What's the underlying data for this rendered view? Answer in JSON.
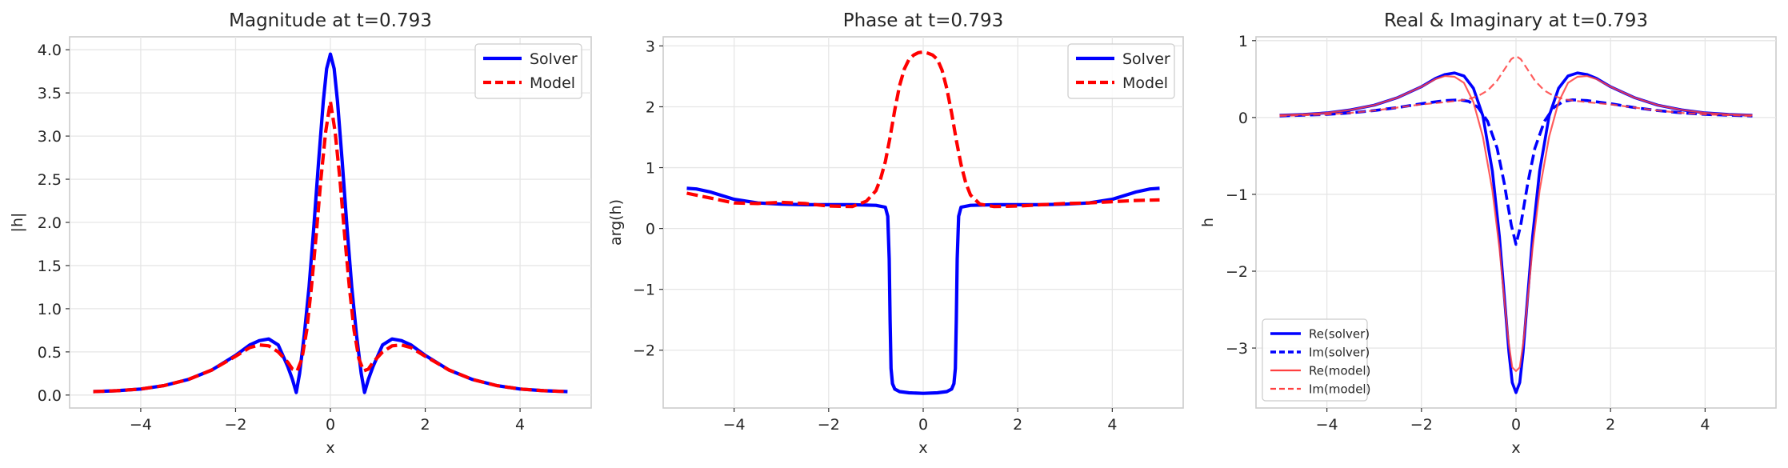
{
  "chart_data": [
    {
      "type": "line",
      "title": "Magnitude at t=0.793",
      "xlabel": "x",
      "ylabel": "|h|",
      "xlim": [
        -5.5,
        5.5
      ],
      "ylim": [
        -0.15,
        4.15
      ],
      "xticks": [
        -4,
        -2,
        0,
        2,
        4
      ],
      "xtick_labels": [
        "−4",
        "−2",
        "0",
        "2",
        "4"
      ],
      "yticks": [
        0,
        0.5,
        1,
        1.5,
        2,
        2.5,
        3,
        3.5,
        4
      ],
      "ytick_labels": [
        "0.0",
        "0.5",
        "1.0",
        "1.5",
        "2.0",
        "2.5",
        "3.0",
        "3.5",
        "4.0"
      ],
      "grid": true,
      "legend_position": "upper-right",
      "series": [
        {
          "name": "Solver",
          "color": "#0000ff",
          "dash": "solid",
          "x": [
            -5,
            -4.5,
            -4,
            -3.5,
            -3,
            -2.5,
            -2,
            -1.7,
            -1.5,
            -1.3,
            -1.1,
            -0.9,
            -0.8,
            -0.72,
            -0.65,
            -0.55,
            -0.45,
            -0.35,
            -0.25,
            -0.15,
            -0.08,
            0,
            0.08,
            0.15,
            0.25,
            0.35,
            0.45,
            0.55,
            0.65,
            0.72,
            0.8,
            0.9,
            1.1,
            1.3,
            1.5,
            1.7,
            2,
            2.5,
            3,
            3.5,
            4,
            4.5,
            5
          ],
          "y": [
            0.04,
            0.05,
            0.07,
            0.11,
            0.18,
            0.29,
            0.46,
            0.58,
            0.63,
            0.65,
            0.58,
            0.33,
            0.18,
            0.03,
            0.25,
            0.7,
            1.25,
            1.95,
            2.7,
            3.4,
            3.78,
            3.95,
            3.78,
            3.4,
            2.7,
            1.95,
            1.25,
            0.7,
            0.25,
            0.03,
            0.18,
            0.33,
            0.58,
            0.65,
            0.63,
            0.58,
            0.46,
            0.29,
            0.18,
            0.11,
            0.07,
            0.05,
            0.04
          ]
        },
        {
          "name": "Model",
          "color": "#ff0000",
          "dash": "dashed",
          "x": [
            -5,
            -4.5,
            -4,
            -3.5,
            -3,
            -2.5,
            -2,
            -1.7,
            -1.5,
            -1.3,
            -1.1,
            -0.9,
            -0.8,
            -0.7,
            -0.6,
            -0.5,
            -0.4,
            -0.3,
            -0.2,
            -0.1,
            0,
            0.1,
            0.2,
            0.3,
            0.4,
            0.5,
            0.6,
            0.7,
            0.8,
            0.9,
            1.1,
            1.3,
            1.5,
            1.7,
            2,
            2.5,
            3,
            3.5,
            4,
            4.5,
            5
          ],
          "y": [
            0.04,
            0.05,
            0.07,
            0.11,
            0.18,
            0.29,
            0.45,
            0.55,
            0.58,
            0.57,
            0.5,
            0.38,
            0.3,
            0.28,
            0.42,
            0.75,
            1.25,
            1.85,
            2.5,
            3.05,
            3.4,
            3.05,
            2.5,
            1.85,
            1.25,
            0.75,
            0.42,
            0.28,
            0.3,
            0.38,
            0.5,
            0.57,
            0.58,
            0.55,
            0.45,
            0.29,
            0.18,
            0.11,
            0.07,
            0.05,
            0.04
          ]
        }
      ]
    },
    {
      "type": "line",
      "title": "Phase at t=0.793",
      "xlabel": "x",
      "ylabel": "arg(h)",
      "xlim": [
        -5.5,
        5.5
      ],
      "ylim": [
        -2.95,
        3.15
      ],
      "xticks": [
        -4,
        -2,
        0,
        2,
        4
      ],
      "xtick_labels": [
        "−4",
        "−2",
        "0",
        "2",
        "4"
      ],
      "yticks": [
        -2,
        -1,
        0,
        1,
        2,
        3
      ],
      "ytick_labels": [
        "−2",
        "−1",
        "0",
        "1",
        "2",
        "3"
      ],
      "grid": true,
      "legend_position": "upper-right",
      "series": [
        {
          "name": "Solver",
          "color": "#0000ff",
          "dash": "solid",
          "x": [
            -5,
            -4.8,
            -4.5,
            -4,
            -3.5,
            -3,
            -2.5,
            -2,
            -1.5,
            -1,
            -0.8,
            -0.75,
            -0.72,
            -0.7,
            -0.68,
            -0.65,
            -0.6,
            -0.5,
            -0.3,
            0,
            0.3,
            0.5,
            0.6,
            0.65,
            0.68,
            0.7,
            0.72,
            0.75,
            0.8,
            1,
            1.5,
            2,
            2.5,
            3,
            3.5,
            4,
            4.5,
            4.8,
            5
          ],
          "y": [
            0.66,
            0.65,
            0.6,
            0.48,
            0.42,
            0.4,
            0.39,
            0.39,
            0.39,
            0.38,
            0.35,
            0.2,
            -0.5,
            -1.5,
            -2.3,
            -2.55,
            -2.64,
            -2.68,
            -2.7,
            -2.71,
            -2.7,
            -2.68,
            -2.64,
            -2.55,
            -2.3,
            -1.5,
            -0.5,
            0.2,
            0.35,
            0.38,
            0.39,
            0.39,
            0.39,
            0.4,
            0.42,
            0.48,
            0.6,
            0.65,
            0.66
          ]
        },
        {
          "name": "Model",
          "color": "#ff0000",
          "dash": "dashed",
          "x": [
            -5,
            -4.5,
            -4,
            -3.5,
            -3,
            -2.5,
            -2,
            -1.5,
            -1.2,
            -1,
            -0.9,
            -0.8,
            -0.7,
            -0.6,
            -0.5,
            -0.4,
            -0.3,
            -0.2,
            -0.1,
            0,
            0.1,
            0.2,
            0.3,
            0.4,
            0.5,
            0.6,
            0.7,
            0.8,
            0.9,
            1,
            1.2,
            1.5,
            2,
            2.5,
            3,
            3.5,
            4,
            4.5,
            5
          ],
          "y": [
            0.58,
            0.5,
            0.42,
            0.41,
            0.43,
            0.41,
            0.37,
            0.36,
            0.45,
            0.62,
            0.82,
            1.1,
            1.5,
            1.95,
            2.35,
            2.62,
            2.78,
            2.85,
            2.89,
            2.9,
            2.88,
            2.85,
            2.78,
            2.6,
            2.3,
            1.9,
            1.45,
            1.05,
            0.75,
            0.55,
            0.4,
            0.36,
            0.37,
            0.39,
            0.41,
            0.42,
            0.44,
            0.46,
            0.47
          ]
        }
      ]
    },
    {
      "type": "line",
      "title": "Real & Imaginary at t=0.793",
      "xlabel": "x",
      "ylabel": "h",
      "xlim": [
        -5.5,
        5.5
      ],
      "ylim": [
        -3.78,
        1.05
      ],
      "xticks": [
        -4,
        -2,
        0,
        2,
        4
      ],
      "xtick_labels": [
        "−4",
        "−2",
        "0",
        "2",
        "4"
      ],
      "yticks": [
        -3,
        -2,
        -1,
        0,
        1
      ],
      "ytick_labels": [
        "−3",
        "−2",
        "−1",
        "0",
        "1"
      ],
      "grid": true,
      "legend_position": "lower-left",
      "series": [
        {
          "name": "Re(solver)",
          "color": "#0000ff",
          "dash": "solid",
          "x": [
            -5,
            -4.5,
            -4,
            -3.5,
            -3,
            -2.5,
            -2,
            -1.7,
            -1.5,
            -1.3,
            -1.1,
            -0.9,
            -0.7,
            -0.5,
            -0.35,
            -0.25,
            -0.15,
            -0.08,
            0,
            0.08,
            0.15,
            0.25,
            0.35,
            0.5,
            0.7,
            0.9,
            1.1,
            1.3,
            1.5,
            1.7,
            2,
            2.5,
            3,
            3.5,
            4,
            4.5,
            5
          ],
          "y": [
            0.03,
            0.04,
            0.06,
            0.1,
            0.16,
            0.26,
            0.4,
            0.51,
            0.56,
            0.58,
            0.54,
            0.38,
            0.02,
            -0.7,
            -1.55,
            -2.3,
            -3.05,
            -3.45,
            -3.58,
            -3.45,
            -3.05,
            -2.3,
            -1.55,
            -0.7,
            0.02,
            0.38,
            0.54,
            0.58,
            0.56,
            0.51,
            0.4,
            0.26,
            0.16,
            0.1,
            0.06,
            0.04,
            0.03
          ]
        },
        {
          "name": "Im(solver)",
          "color": "#0000ff",
          "dash": "dashed",
          "x": [
            -5,
            -4.5,
            -4,
            -3.5,
            -3,
            -2.5,
            -2,
            -1.5,
            -1.2,
            -1,
            -0.8,
            -0.6,
            -0.4,
            -0.25,
            -0.1,
            0,
            0.1,
            0.25,
            0.4,
            0.6,
            0.8,
            1,
            1.2,
            1.5,
            2,
            2.5,
            3,
            3.5,
            4,
            4.5,
            5
          ],
          "y": [
            0.02,
            0.03,
            0.04,
            0.06,
            0.09,
            0.13,
            0.18,
            0.22,
            0.23,
            0.21,
            0.13,
            -0.05,
            -0.4,
            -0.85,
            -1.4,
            -1.65,
            -1.4,
            -0.85,
            -0.4,
            -0.05,
            0.13,
            0.21,
            0.23,
            0.22,
            0.18,
            0.13,
            0.09,
            0.06,
            0.04,
            0.03,
            0.02
          ]
        },
        {
          "name": "Re(model)",
          "color": "#ff4040",
          "dash": "solid",
          "x": [
            -5,
            -4.5,
            -4,
            -3.5,
            -3,
            -2.5,
            -2,
            -1.7,
            -1.5,
            -1.3,
            -1.1,
            -0.9,
            -0.7,
            -0.5,
            -0.35,
            -0.25,
            -0.15,
            -0.08,
            0,
            0.08,
            0.15,
            0.25,
            0.35,
            0.5,
            0.7,
            0.9,
            1.1,
            1.3,
            1.5,
            1.7,
            2,
            2.5,
            3,
            3.5,
            4,
            4.5,
            5
          ],
          "y": [
            0.03,
            0.04,
            0.06,
            0.1,
            0.16,
            0.26,
            0.4,
            0.5,
            0.54,
            0.53,
            0.45,
            0.2,
            -0.25,
            -0.95,
            -1.7,
            -2.35,
            -2.95,
            -3.25,
            -3.3,
            -3.25,
            -2.95,
            -2.35,
            -1.7,
            -0.95,
            -0.25,
            0.2,
            0.45,
            0.53,
            0.54,
            0.5,
            0.4,
            0.26,
            0.16,
            0.1,
            0.06,
            0.04,
            0.03
          ]
        },
        {
          "name": "Im(model)",
          "color": "#ff4040",
          "dash": "dashed",
          "x": [
            -5,
            -4.5,
            -4,
            -3.5,
            -3,
            -2.5,
            -2,
            -1.5,
            -1.2,
            -1,
            -0.8,
            -0.6,
            -0.4,
            -0.25,
            -0.1,
            0,
            0.1,
            0.25,
            0.4,
            0.6,
            0.8,
            1,
            1.2,
            1.5,
            2,
            2.5,
            3,
            3.5,
            4,
            4.5,
            5
          ],
          "y": [
            0.02,
            0.03,
            0.04,
            0.06,
            0.09,
            0.13,
            0.17,
            0.2,
            0.22,
            0.24,
            0.28,
            0.35,
            0.48,
            0.62,
            0.76,
            0.8,
            0.76,
            0.62,
            0.48,
            0.35,
            0.28,
            0.24,
            0.22,
            0.2,
            0.17,
            0.13,
            0.09,
            0.06,
            0.04,
            0.03,
            0.02
          ]
        }
      ]
    }
  ]
}
